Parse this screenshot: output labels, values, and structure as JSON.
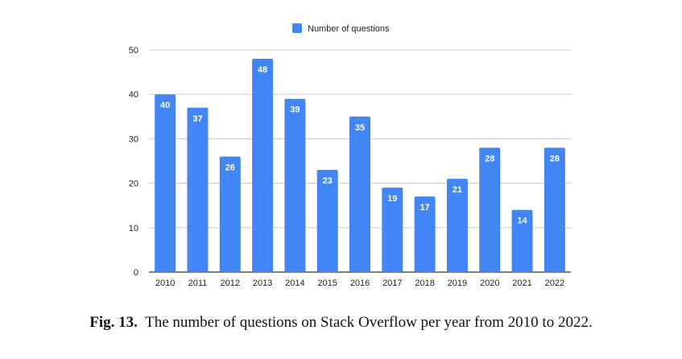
{
  "chart_data": {
    "type": "bar",
    "categories": [
      "2010",
      "2011",
      "2012",
      "2013",
      "2014",
      "2015",
      "2016",
      "2017",
      "2018",
      "2019",
      "2020",
      "2021",
      "2022"
    ],
    "series": [
      {
        "name": "Number of questions",
        "values": [
          40,
          37,
          26,
          48,
          39,
          23,
          35,
          19,
          17,
          21,
          28,
          14,
          28
        ],
        "color": "#4285f4"
      }
    ],
    "yticks": [
      "0",
      "10",
      "20",
      "30",
      "40",
      "50"
    ],
    "ylim": [
      0,
      50
    ],
    "grid": true,
    "legend_position": "top-center",
    "data_labels": true
  },
  "caption": {
    "label": "Fig. 13.",
    "text": "The number of questions on Stack Overflow per year from 2010 to 2022."
  }
}
